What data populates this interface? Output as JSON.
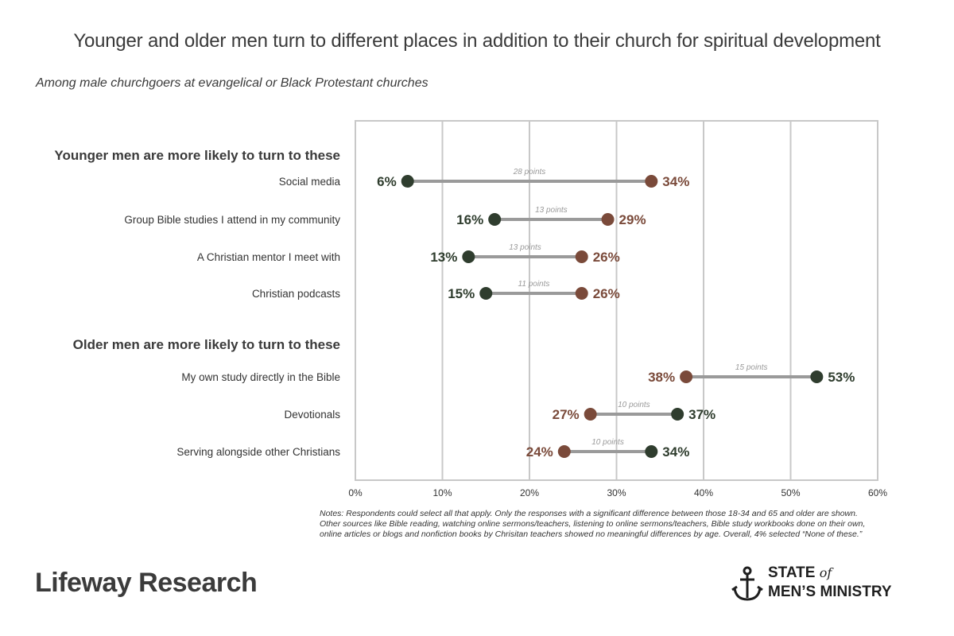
{
  "title": "Younger and older men turn to different places in addition to their church for spiritual development",
  "subtitle": "Among male churchgoers at evangelical or Black Protestant churches",
  "colors": {
    "younger": "#7a4a3a",
    "older": "#2f3d2e",
    "connector": "#9a9a9a",
    "grid": "#c8c8c8"
  },
  "chart_data": {
    "type": "dumbbell",
    "xlim": [
      0,
      60
    ],
    "x_ticks": [
      "0%",
      "10%",
      "20%",
      "30%",
      "40%",
      "50%",
      "60%"
    ],
    "grid": true,
    "groups": [
      {
        "label": "Younger men are more likely to turn to these",
        "items": [
          {
            "label": "Social media",
            "older": 6,
            "younger": 34,
            "older_label": "6%",
            "younger_label": "34%",
            "gap_label": "28 points"
          },
          {
            "label": "Group Bible studies I attend in my community",
            "older": 16,
            "younger": 29,
            "older_label": "16%",
            "younger_label": "29%",
            "gap_label": "13 points"
          },
          {
            "label": "A Christian mentor I meet with",
            "older": 13,
            "younger": 26,
            "older_label": "13%",
            "younger_label": "26%",
            "gap_label": "13 points"
          },
          {
            "label": "Christian podcasts",
            "older": 15,
            "younger": 26,
            "older_label": "15%",
            "younger_label": "26%",
            "gap_label": "11 points"
          }
        ]
      },
      {
        "label": "Older men are more likely to turn to these",
        "items": [
          {
            "label": "My own study directly in the Bible",
            "older": 53,
            "younger": 38,
            "older_label": "53%",
            "younger_label": "38%",
            "gap_label": "15 points"
          },
          {
            "label": "Devotionals",
            "older": 37,
            "younger": 27,
            "older_label": "37%",
            "younger_label": "27%",
            "gap_label": "10 points"
          },
          {
            "label": "Serving alongside other Christians",
            "older": 34,
            "younger": 24,
            "older_label": "34%",
            "younger_label": "24%",
            "gap_label": "10 points"
          }
        ]
      }
    ]
  },
  "notes": [
    "Notes: Respondents could select all that apply. Only the responses with a significant difference between those 18-34 and 65 and older are shown.",
    "Other sources like Bible reading, watching online sermons/teachers, listening to online sermons/teachers, Bible study workbooks done on their own,",
    "online articles or blogs and nonfiction books by Chrisitan teachers showed no meaningful differences by age. Overall, 4% selected “None of these.”"
  ],
  "logos": {
    "left": "Lifeway Research",
    "right_line1": "STATE",
    "right_of": "of",
    "right_line2": "MEN’S MINISTRY"
  }
}
